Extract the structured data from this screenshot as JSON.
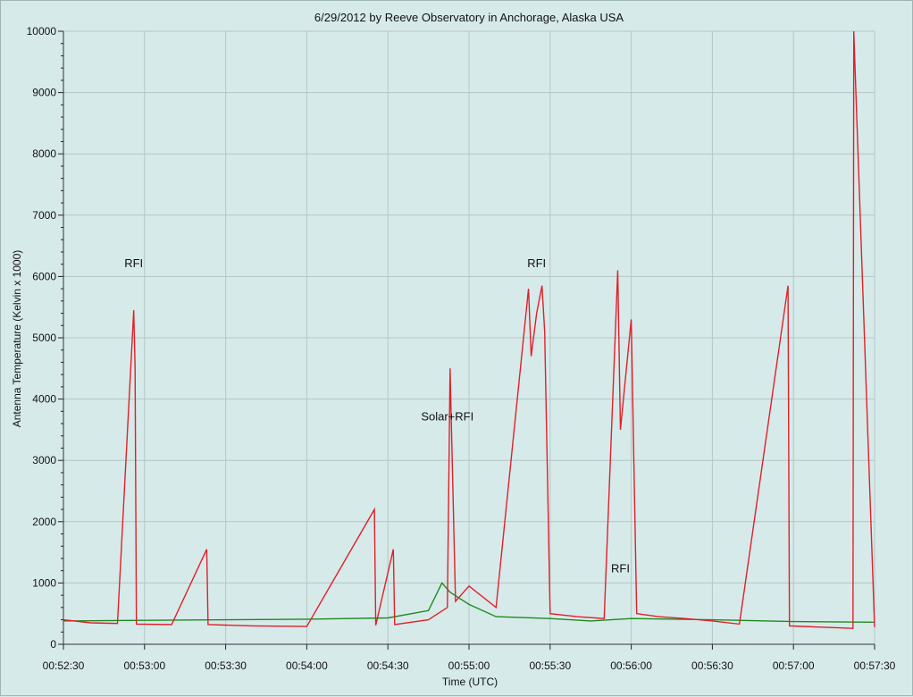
{
  "chart_data": {
    "type": "line",
    "title": "6/29/2012  by  Reeve Observatory  in  Anchorage, Alaska  USA",
    "xlabel": "Time (UTC)",
    "ylabel": "Antenna Temperature (Kelvin x 1000)",
    "ylim": [
      0,
      10000
    ],
    "xlim": [
      "00:52:30",
      "00:57:30"
    ],
    "yticks": [
      "0",
      "1000",
      "2000",
      "3000",
      "4000",
      "5000",
      "6000",
      "7000",
      "8000",
      "9000",
      "10000"
    ],
    "xticks": [
      "00:52:30",
      "00:53:00",
      "00:53:30",
      "00:54:00",
      "00:54:30",
      "00:55:00",
      "00:55:30",
      "00:56:00",
      "00:56:30",
      "00:57:00",
      "00:57:30"
    ],
    "grid": true,
    "colors": {
      "red_series": "#e0202a",
      "green_series": "#1f8a1f",
      "background": "#d7eaea",
      "grid": "#b4c6c6"
    },
    "series": [
      {
        "color": "#e0202a",
        "x": [
          "00:52:30",
          "00:52:40",
          "00:52:50",
          "00:52:56",
          "00:52:56.5",
          "00:52:57",
          "00:53:10",
          "00:53:23",
          "00:53:23.5",
          "00:53:40",
          "00:54:00",
          "00:54:25",
          "00:54:25.5",
          "00:54:32",
          "00:54:32.5",
          "00:54:45",
          "00:54:52",
          "00:54:53",
          "00:54:55",
          "00:55:00",
          "00:55:10",
          "00:55:22",
          "00:55:23",
          "00:55:25",
          "00:55:27",
          "00:55:28",
          "00:55:30",
          "00:55:40",
          "00:55:50",
          "00:55:55",
          "00:55:56",
          "00:56:00",
          "00:56:02",
          "00:56:10",
          "00:56:20",
          "00:56:30",
          "00:56:40",
          "00:56:58",
          "00:56:58.5",
          "00:57:10",
          "00:57:22",
          "00:57:22.3",
          "00:57:30"
        ],
        "y": [
          400,
          350,
          340,
          5450,
          4500,
          330,
          320,
          1550,
          320,
          300,
          290,
          2200,
          310,
          1550,
          320,
          400,
          600,
          4500,
          700,
          950,
          600,
          5800,
          4700,
          5400,
          5850,
          5100,
          500,
          450,
          420,
          6100,
          3500,
          5300,
          500,
          450,
          420,
          380,
          330,
          5850,
          300,
          280,
          260,
          10000,
          280
        ]
      },
      {
        "color": "#1f8a1f",
        "x": [
          "00:52:30",
          "00:53:00",
          "00:53:30",
          "00:54:00",
          "00:54:30",
          "00:54:45",
          "00:54:50",
          "00:54:53",
          "00:55:00",
          "00:55:10",
          "00:55:30",
          "00:55:45",
          "00:56:00",
          "00:56:30",
          "00:57:00",
          "00:57:30"
        ],
        "y": [
          380,
          390,
          400,
          410,
          430,
          550,
          1000,
          850,
          650,
          450,
          420,
          380,
          420,
          400,
          370,
          360
        ]
      }
    ],
    "annotations": [
      {
        "text": "RFI",
        "x": "00:52:56",
        "y": 6150
      },
      {
        "text": "RFI",
        "x": "00:55:25",
        "y": 6150
      },
      {
        "text": "Solar+RFI",
        "x": "00:54:52",
        "y": 3650
      },
      {
        "text": "RFI",
        "x": "00:55:56",
        "y": 1170
      }
    ]
  }
}
